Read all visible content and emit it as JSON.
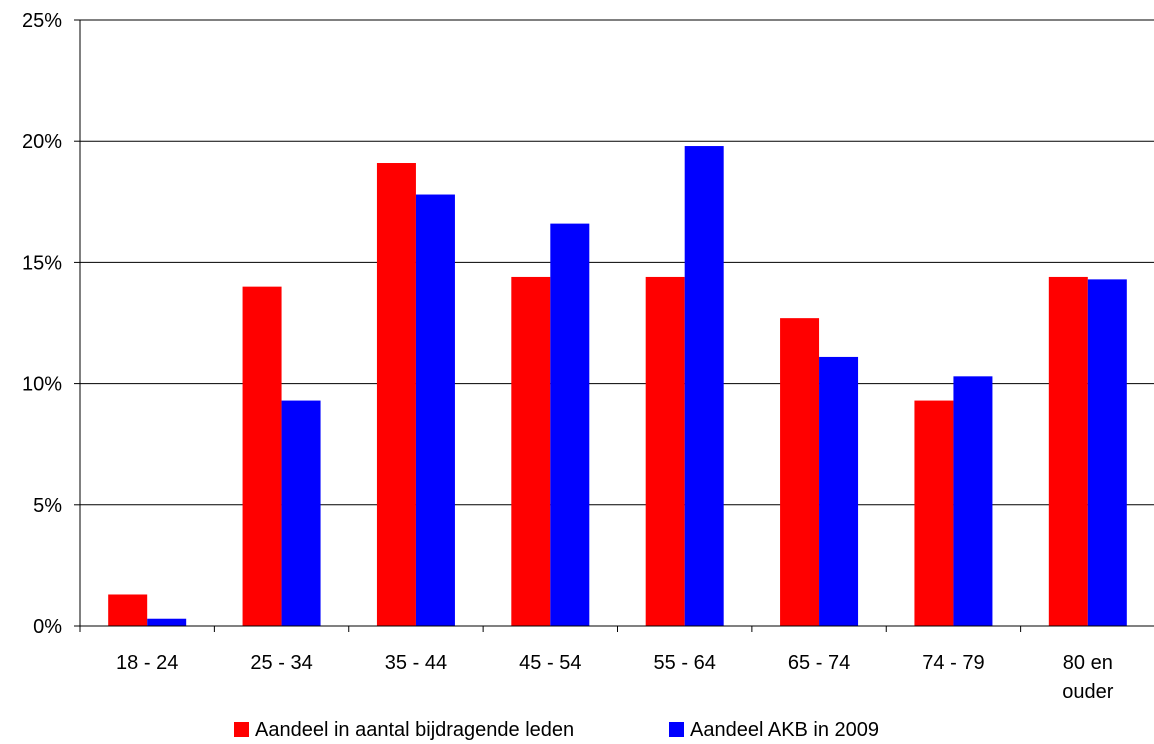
{
  "chart_data": {
    "type": "bar",
    "categories": [
      "18 - 24",
      "25 - 34",
      "35 - 44",
      "45 - 54",
      "55 - 64",
      "65 - 74",
      "74 - 79",
      "80 en ouder"
    ],
    "category_lines": [
      [
        "18 - 24"
      ],
      [
        "25 - 34"
      ],
      [
        "35 - 44"
      ],
      [
        "45 - 54"
      ],
      [
        "55 - 64"
      ],
      [
        "65 - 74"
      ],
      [
        "74 - 79"
      ],
      [
        "80 en",
        "ouder"
      ]
    ],
    "series": [
      {
        "name": "Aandeel in aantal bijdragende leden",
        "color": "#ff0000",
        "values": [
          1.3,
          14.0,
          19.1,
          14.4,
          14.4,
          12.7,
          9.3,
          14.4
        ]
      },
      {
        "name": "Aandeel AKB in 2009",
        "color": "#0000ff",
        "values": [
          0.3,
          9.3,
          17.8,
          16.6,
          19.8,
          11.1,
          10.3,
          14.3
        ]
      }
    ],
    "yticks": [
      "0%",
      "5%",
      "10%",
      "15%",
      "20%",
      "25%"
    ],
    "ytick_values": [
      0,
      5,
      10,
      15,
      20,
      25
    ],
    "ylim": [
      0,
      25
    ],
    "grid": true,
    "legend_position": "bottom"
  }
}
